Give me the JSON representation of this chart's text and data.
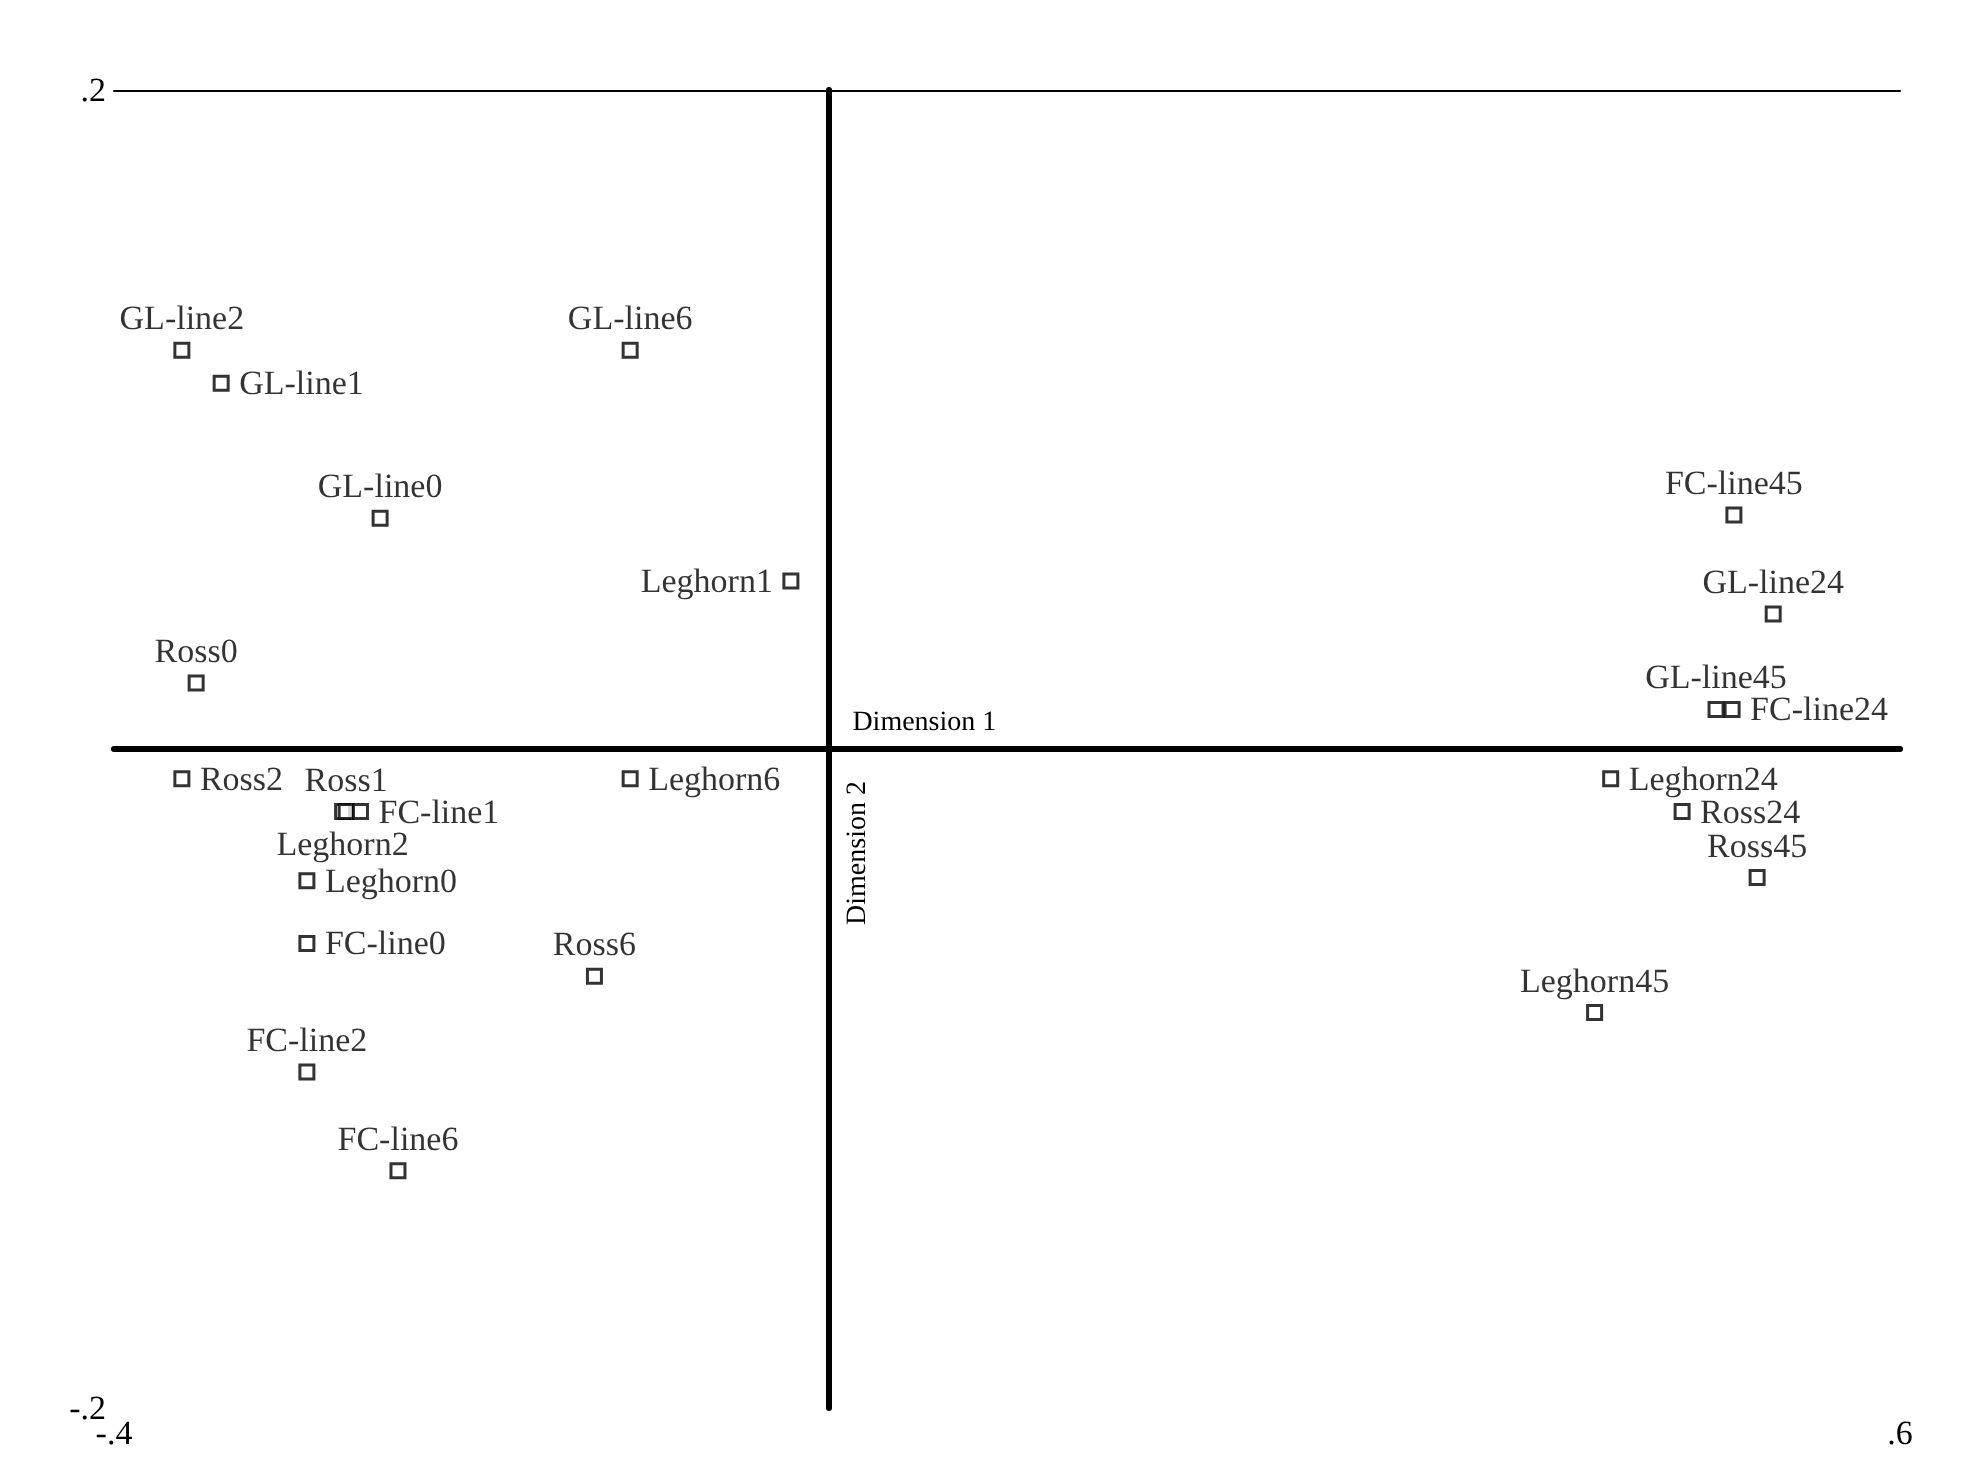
{
  "chart_data": {
    "type": "scatter",
    "xlabel": "Dimension 1",
    "ylabel": "Dimension 2",
    "xlim": [
      -0.4,
      0.6
    ],
    "ylim": [
      -0.2,
      0.2
    ],
    "xticks": [
      {
        "value": -0.4,
        "label": "-.4"
      },
      {
        "value": 0.6,
        "label": ".6"
      }
    ],
    "yticks": [
      {
        "value": -0.2,
        "label": "-.2"
      },
      {
        "value": 0.2,
        "label": ".2"
      }
    ],
    "marker": "square",
    "series": [
      {
        "name": "GL-line2",
        "color": "#000000",
        "x": [
          -0.362
        ],
        "values": [
          0.121
        ]
      },
      {
        "name": "GL-line1",
        "color": "#000000",
        "x": [
          -0.34
        ],
        "values": [
          0.111
        ]
      },
      {
        "name": "GL-line6",
        "color": "#000000",
        "x": [
          -0.111
        ],
        "values": [
          0.121
        ]
      },
      {
        "name": "GL-line0",
        "color": "#000000",
        "x": [
          -0.251
        ],
        "values": [
          0.07
        ]
      },
      {
        "name": "Leghorn1",
        "color": "#000000",
        "x": [
          -0.021
        ],
        "values": [
          0.051
        ]
      },
      {
        "name": "Ross0",
        "color": "#000000",
        "x": [
          -0.354
        ],
        "values": [
          0.02
        ]
      },
      {
        "name": "Ross2",
        "color": "#000000",
        "x": [
          -0.362
        ],
        "values": [
          -0.009
        ]
      },
      {
        "name": "Leghorn2",
        "color": "#000000",
        "x": [
          -0.272
        ],
        "values": [
          -0.019
        ]
      },
      {
        "name": "Ross1",
        "color": "#000000",
        "x": [
          -0.27
        ],
        "values": [
          -0.019
        ]
      },
      {
        "name": "FC-line1",
        "color": "#000000",
        "x": [
          -0.262
        ],
        "values": [
          -0.019
        ]
      },
      {
        "name": "Leghorn6",
        "color": "#000000",
        "x": [
          -0.111
        ],
        "values": [
          -0.009
        ]
      },
      {
        "name": "Leghorn0",
        "color": "#000000",
        "x": [
          -0.292
        ],
        "values": [
          -0.04
        ]
      },
      {
        "name": "FC-line0",
        "color": "#000000",
        "x": [
          -0.292
        ],
        "values": [
          -0.059
        ]
      },
      {
        "name": "Ross6",
        "color": "#000000",
        "x": [
          -0.131
        ],
        "values": [
          -0.069
        ]
      },
      {
        "name": "FC-line2",
        "color": "#000000",
        "x": [
          -0.292
        ],
        "values": [
          -0.098
        ]
      },
      {
        "name": "FC-line6",
        "color": "#000000",
        "x": [
          -0.241
        ],
        "values": [
          -0.128
        ]
      },
      {
        "name": "FC-line45",
        "color": "#000000",
        "x": [
          0.507
        ],
        "values": [
          0.071
        ]
      },
      {
        "name": "GL-line24",
        "color": "#000000",
        "x": [
          0.529
        ],
        "values": [
          0.041
        ]
      },
      {
        "name": "GL-line45",
        "color": "#000000",
        "x": [
          0.497
        ],
        "values": [
          0.012
        ]
      },
      {
        "name": "FC-line24",
        "color": "#000000",
        "x": [
          0.506
        ],
        "values": [
          0.012
        ]
      },
      {
        "name": "Leghorn24",
        "color": "#000000",
        "x": [
          0.438
        ],
        "values": [
          -0.009
        ]
      },
      {
        "name": "Ross24",
        "color": "#000000",
        "x": [
          0.478
        ],
        "values": [
          -0.019
        ]
      },
      {
        "name": "Ross45",
        "color": "#000000",
        "x": [
          0.52
        ],
        "values": [
          -0.039
        ]
      },
      {
        "name": "Leghorn45",
        "color": "#000000",
        "x": [
          0.429
        ],
        "values": [
          -0.08
        ]
      }
    ]
  }
}
